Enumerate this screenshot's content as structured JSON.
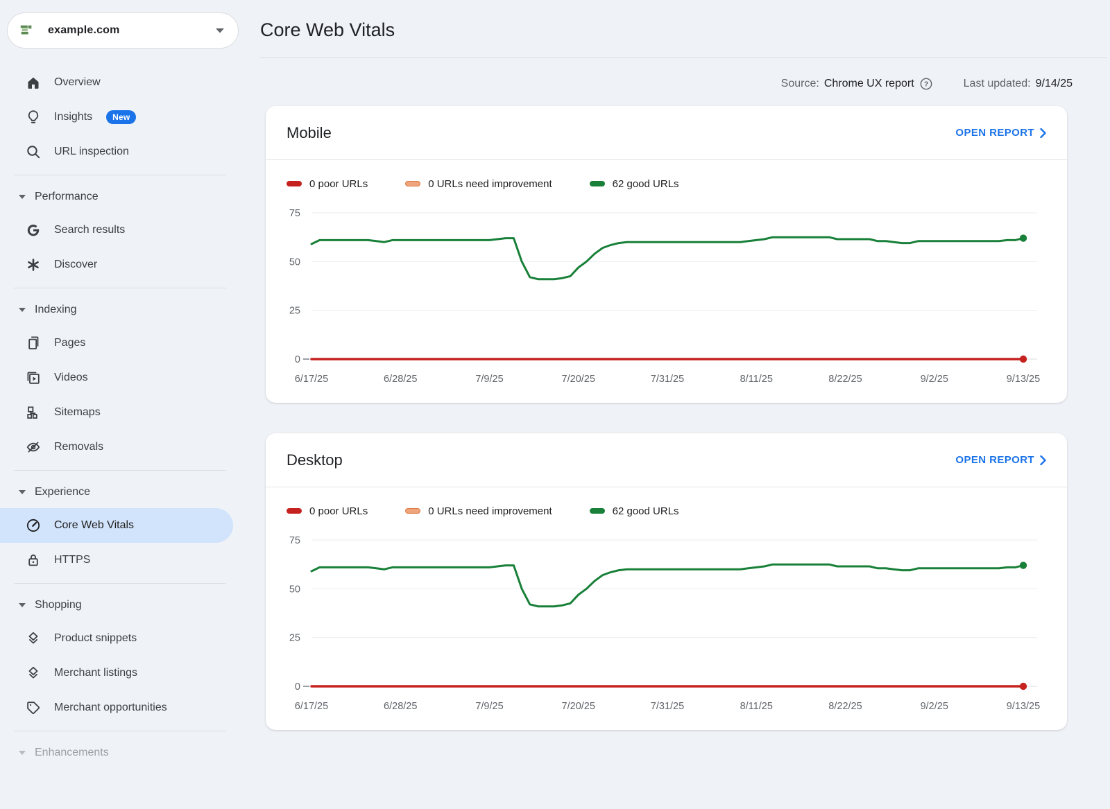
{
  "property": {
    "name": "example.com"
  },
  "sidebar": {
    "top_items": [
      {
        "label": "Overview"
      },
      {
        "label": "Insights",
        "badge": "New"
      },
      {
        "label": "URL inspection"
      }
    ],
    "sections": [
      {
        "header": "Performance",
        "items": [
          {
            "label": "Search results"
          },
          {
            "label": "Discover"
          }
        ]
      },
      {
        "header": "Indexing",
        "items": [
          {
            "label": "Pages"
          },
          {
            "label": "Videos"
          },
          {
            "label": "Sitemaps"
          },
          {
            "label": "Removals"
          }
        ]
      },
      {
        "header": "Experience",
        "items": [
          {
            "label": "Core Web Vitals",
            "active": true
          },
          {
            "label": "HTTPS"
          }
        ]
      },
      {
        "header": "Shopping",
        "items": [
          {
            "label": "Product snippets"
          },
          {
            "label": "Merchant listings"
          },
          {
            "label": "Merchant opportunities"
          }
        ]
      },
      {
        "header": "Enhancements",
        "items": []
      }
    ]
  },
  "header": {
    "title": "Core Web Vitals",
    "source_label": "Source:",
    "source_value": "Chrome UX report",
    "updated_label": "Last updated:",
    "updated_value": "9/14/25"
  },
  "colors": {
    "accent_blue": "#1a73e8",
    "good_green": "#188038",
    "poor_red": "#c5221f",
    "improve_orange_fill": "#efa57c",
    "improve_orange_border": "#dd7a42",
    "active_pill": "#d2e3fc",
    "grid_light": "#ebedf0",
    "axis_gray": "#dadce0",
    "label_gray": "#5f6368"
  },
  "cards": [
    {
      "title": "Mobile",
      "action": "OPEN REPORT",
      "legend": [
        {
          "label": "0 poor URLs",
          "color": "#c5221f"
        },
        {
          "label": "0 URLs need improvement",
          "color": "#efa57c",
          "border": "#dd7a42"
        },
        {
          "label": "62 good URLs",
          "color": "#188038"
        }
      ]
    },
    {
      "title": "Desktop",
      "action": "OPEN REPORT",
      "legend": [
        {
          "label": "0 poor URLs",
          "color": "#c5221f"
        },
        {
          "label": "0 URLs need improvement",
          "color": "#efa57c",
          "border": "#dd7a42"
        },
        {
          "label": "62 good URLs",
          "color": "#188038"
        }
      ]
    }
  ],
  "chart_data": [
    {
      "type": "line",
      "title": "Mobile",
      "ylim": [
        0,
        75
      ],
      "y_ticks": [
        0,
        25,
        50,
        75
      ],
      "grid": true,
      "legend_position": "top",
      "x_range_days": 88,
      "x_tick_step_days": 11,
      "x_tick_labels": [
        "6/17/25",
        "6/28/25",
        "7/9/25",
        "7/20/25",
        "7/31/25",
        "8/11/25",
        "8/22/25",
        "9/2/25",
        "9/13/25"
      ],
      "series": [
        {
          "name": "0 URLs need improvement",
          "color": "#efa57c",
          "constant": 0,
          "end_dot": false,
          "width": 3
        },
        {
          "name": "0 poor URLs",
          "color": "#c5221f",
          "constant": 0,
          "end_dot": true,
          "width": 3.5
        },
        {
          "name": "62 good URLs",
          "color": "#188038",
          "end_dot": true,
          "width": 3,
          "values": [
            59,
            61,
            61,
            61,
            61,
            61,
            61,
            61,
            60.5,
            60,
            61,
            61,
            61,
            61,
            61,
            61,
            61,
            61,
            61,
            61,
            61,
            61,
            61,
            61.5,
            62,
            62,
            50,
            42,
            41,
            41,
            41,
            41.5,
            42.5,
            47,
            50,
            54,
            57,
            58.5,
            59.5,
            60,
            60,
            60,
            60,
            60,
            60,
            60,
            60,
            60,
            60,
            60,
            60,
            60,
            60,
            60,
            60.5,
            61,
            61.5,
            62.5,
            62.5,
            62.5,
            62.5,
            62.5,
            62.5,
            62.5,
            62.5,
            61.5,
            61.5,
            61.5,
            61.5,
            61.5,
            60.5,
            60.5,
            60,
            59.5,
            59.5,
            60.5,
            60.5,
            60.5,
            60.5,
            60.5,
            60.5,
            60.5,
            60.5,
            60.5,
            60.5,
            60.5,
            61,
            61,
            62
          ]
        }
      ]
    },
    {
      "type": "line",
      "title": "Desktop",
      "ylim": [
        0,
        75
      ],
      "y_ticks": [
        0,
        25,
        50,
        75
      ],
      "grid": true,
      "legend_position": "top",
      "x_range_days": 88,
      "x_tick_step_days": 11,
      "x_tick_labels": [
        "6/17/25",
        "6/28/25",
        "7/9/25",
        "7/20/25",
        "7/31/25",
        "8/11/25",
        "8/22/25",
        "9/2/25",
        "9/13/25"
      ],
      "series": [
        {
          "name": "0 URLs need improvement",
          "color": "#efa57c",
          "constant": 0,
          "end_dot": false,
          "width": 3
        },
        {
          "name": "0 poor URLs",
          "color": "#c5221f",
          "constant": 0,
          "end_dot": true,
          "width": 3.5
        },
        {
          "name": "62 good URLs",
          "color": "#188038",
          "end_dot": true,
          "width": 3,
          "values": [
            59,
            61,
            61,
            61,
            61,
            61,
            61,
            61,
            60.5,
            60,
            61,
            61,
            61,
            61,
            61,
            61,
            61,
            61,
            61,
            61,
            61,
            61,
            61,
            61.5,
            62,
            62,
            50,
            42,
            41,
            41,
            41,
            41.5,
            42.5,
            47,
            50,
            54,
            57,
            58.5,
            59.5,
            60,
            60,
            60,
            60,
            60,
            60,
            60,
            60,
            60,
            60,
            60,
            60,
            60,
            60,
            60,
            60.5,
            61,
            61.5,
            62.5,
            62.5,
            62.5,
            62.5,
            62.5,
            62.5,
            62.5,
            62.5,
            61.5,
            61.5,
            61.5,
            61.5,
            61.5,
            60.5,
            60.5,
            60,
            59.5,
            59.5,
            60.5,
            60.5,
            60.5,
            60.5,
            60.5,
            60.5,
            60.5,
            60.5,
            60.5,
            60.5,
            60.5,
            61,
            61,
            62
          ]
        }
      ]
    }
  ]
}
